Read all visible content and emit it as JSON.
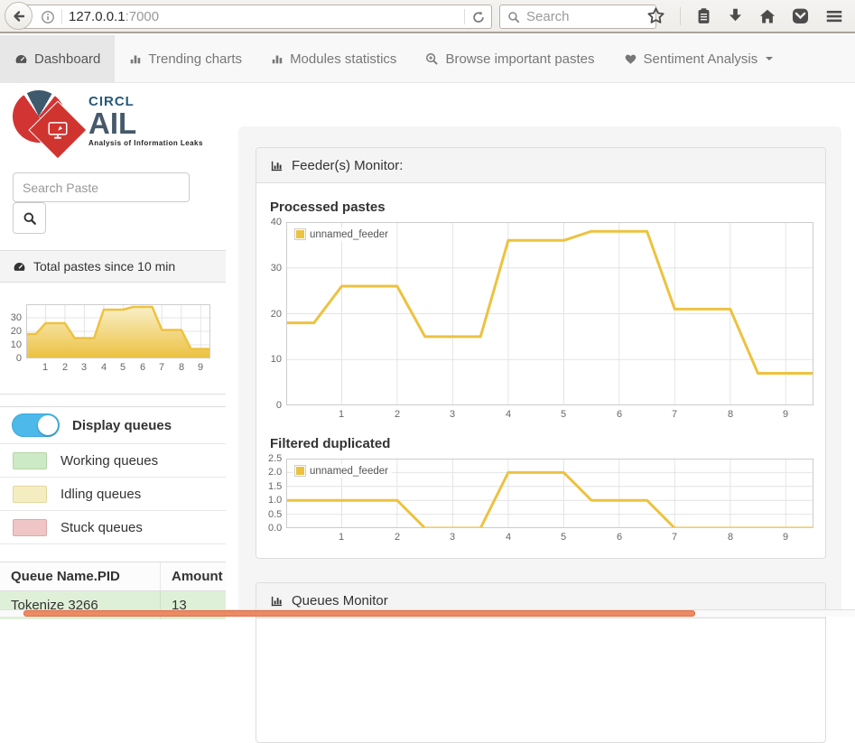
{
  "browser": {
    "url": {
      "host": "127.0.0.1",
      "port": ":7000"
    },
    "search_placeholder": "Search",
    "icons": {
      "left": [
        "back-icon",
        "info-icon",
        "reload-icon"
      ],
      "right": [
        "bookmark-star-icon",
        "bookmarks-menu-icon",
        "downloads-icon",
        "home-icon",
        "pocket-icon",
        "menu-icon"
      ]
    }
  },
  "navbar": {
    "items": [
      {
        "label": "Dashboard",
        "icon": "tachometer-icon",
        "active": true
      },
      {
        "label": "Trending charts",
        "icon": "bar-chart-icon",
        "active": false
      },
      {
        "label": "Modules statistics",
        "icon": "bar-chart-icon",
        "active": false
      },
      {
        "label": "Browse important pastes",
        "icon": "search-plus-icon",
        "active": false
      },
      {
        "label": "Sentiment Analysis",
        "icon": "heart-icon",
        "active": false,
        "has_caret": true
      }
    ]
  },
  "sidebar": {
    "logo": {
      "brand_top": "CIRCL",
      "brand_main": "AIL",
      "tagline": "Analysis of Information Leaks"
    },
    "search_placeholder": "Search Paste",
    "total_pastes_title": "Total pastes since 10 min",
    "display_queues_label": "Display queues",
    "queue_legend": [
      {
        "label": "Working queues",
        "swatch_color": "#cdeac6",
        "swatch_border": "#b3d6a8"
      },
      {
        "label": "Idling queues",
        "swatch_color": "#f5edc2",
        "swatch_border": "#e3d79c"
      },
      {
        "label": "Stuck queues",
        "swatch_color": "#efc5c5",
        "swatch_border": "#dcaaaa"
      }
    ],
    "table": {
      "headers": [
        "Queue Name.PID",
        "Amount"
      ],
      "rows": [
        {
          "queue": "Tokenize 3266",
          "amount": "13",
          "row_color": "#dff0d8"
        }
      ]
    }
  },
  "main": {
    "feeder_panel_title": "Feeder(s) Monitor:",
    "queues_panel_title": "Queues Monitor"
  },
  "colors": {
    "series_yellow": "#edc240",
    "toggle_blue": "#4cb9ea",
    "working_row_green": "#dff0d8",
    "scrollbar_orange": "#ed8a63"
  },
  "chart_data": [
    {
      "type": "line",
      "title": "Processed pastes",
      "x": [
        0,
        0.5,
        1,
        1.5,
        2,
        2.5,
        3,
        3.5,
        4,
        4.5,
        5,
        5.5,
        6,
        6.5,
        7,
        7.5,
        8,
        8.5,
        9,
        9.5
      ],
      "series": [
        {
          "name": "unnamed_feeder",
          "color": "#edc240",
          "values": [
            18,
            18,
            26,
            26,
            26,
            15,
            15,
            15,
            36,
            36,
            36,
            38,
            38,
            38,
            21,
            21,
            21,
            7,
            7,
            7
          ]
        }
      ],
      "xlim": [
        0,
        9.5
      ],
      "ylim": [
        0,
        40
      ],
      "xticks": [
        1,
        2,
        3,
        4,
        5,
        6,
        7,
        8,
        9
      ],
      "ytick_values": [
        0,
        10,
        20,
        30,
        40
      ],
      "ytick_labels": [
        "0",
        "10",
        "20",
        "30",
        "40"
      ],
      "grid": true,
      "show_legend": true,
      "legend_position": "top-left",
      "line_width": 3
    },
    {
      "type": "line",
      "title": "Filtered duplicated",
      "x": [
        0,
        0.5,
        1,
        1.5,
        2,
        2.5,
        3,
        3.5,
        4,
        4.5,
        5,
        5.5,
        6,
        6.5,
        7,
        7.5,
        8,
        8.5,
        9,
        9.5
      ],
      "series": [
        {
          "name": "unnamed_feeder",
          "color": "#edc240",
          "values": [
            1,
            1,
            1,
            1,
            1,
            0,
            0,
            0,
            2,
            2,
            2,
            1,
            1,
            1,
            0,
            0,
            0,
            0,
            0,
            0
          ]
        }
      ],
      "xlim": [
        0,
        9.5
      ],
      "ylim": [
        0,
        2.5
      ],
      "xticks": [
        1,
        2,
        3,
        4,
        5,
        6,
        7,
        8,
        9
      ],
      "ytick_values": [
        0,
        0.5,
        1,
        1.5,
        2,
        2.5
      ],
      "ytick_labels": [
        "0.0",
        "0.5",
        "1.0",
        "1.5",
        "2.0",
        "2.5"
      ],
      "grid": true,
      "show_legend": true,
      "legend_position": "top-left",
      "line_width": 3
    },
    {
      "type": "area",
      "title": "Total pastes since 10 min",
      "x": [
        0,
        0.5,
        1,
        1.5,
        2,
        2.5,
        3,
        3.5,
        4,
        4.5,
        5,
        5.5,
        6,
        6.5,
        7,
        7.5,
        8,
        8.5,
        9,
        9.5
      ],
      "series": [
        {
          "name": "unnamed_feeder",
          "color": "#edc240",
          "values": [
            18,
            18,
            26,
            26,
            26,
            15,
            15,
            15,
            36,
            36,
            36,
            38,
            38,
            38,
            21,
            21,
            21,
            7,
            7,
            7
          ]
        }
      ],
      "xlim": [
        0,
        9.5
      ],
      "ylim": [
        0,
        40
      ],
      "xticks": [
        1,
        2,
        3,
        4,
        5,
        6,
        7,
        8,
        9
      ],
      "ytick_values": [
        0,
        10,
        20,
        30
      ],
      "ytick_labels": [
        "0",
        "10",
        "20",
        "30"
      ],
      "grid": true,
      "show_legend": false,
      "fill_gradient": [
        "#f9efc8",
        "#ecc13f"
      ],
      "line_width": 2.5
    }
  ]
}
